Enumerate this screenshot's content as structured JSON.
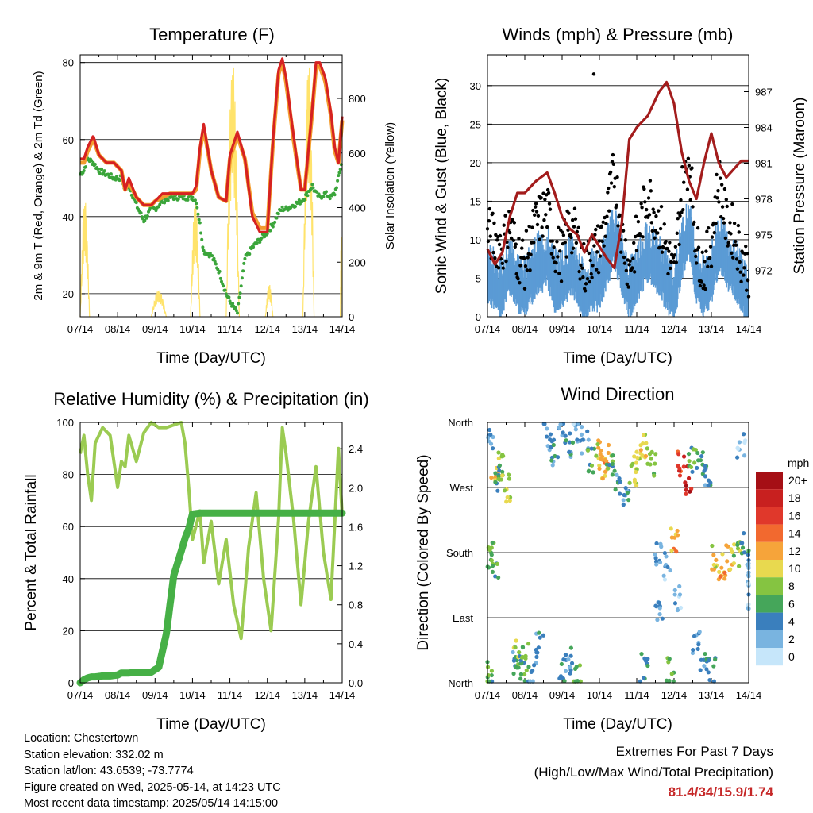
{
  "x_ticks": [
    "07/14",
    "08/14",
    "09/14",
    "10/14",
    "11/14",
    "12/14",
    "13/14",
    "14/14"
  ],
  "colors": {
    "temp2m": "#d62222",
    "temp9m": "#f39c2e",
    "td": "#3aa53a",
    "solar": "#ffe36b",
    "gust": "#000000",
    "wind": "#5b9bd5",
    "pressure": "#a31c1c",
    "rh": "#9bcb52",
    "precip": "#46b046"
  },
  "legend": {
    "unit": "mph",
    "labels": [
      "20+",
      "18",
      "16",
      "14",
      "12",
      "10",
      "8",
      "6",
      "4",
      "2",
      "0"
    ],
    "colors": [
      "#a50f15",
      "#c8201f",
      "#e0382b",
      "#f2692f",
      "#f6a43a",
      "#e8d94f",
      "#85c441",
      "#45a65a",
      "#3a7fbd",
      "#79b4e0",
      "#c6e6fa"
    ]
  },
  "info": {
    "location": "Location: Chestertown",
    "elevation": "Station elevation: 332.02 m",
    "latlon": "Station lat/lon: 43.6539; -73.7774",
    "created": "Figure created on Wed, 2025-05-14, at 14:23 UTC",
    "recent": "Most recent data timestamp: 2025/05/14 14:15:00"
  },
  "extremes": {
    "line1": "Extremes For Past 7 Days",
    "line2": "(High/Low/Max Wind/Total Precipitation)",
    "values": "81.4/34/15.9/1.74"
  },
  "chart_data": [
    {
      "id": "temperature",
      "type": "line",
      "title": "Temperature (F)",
      "xlabel": "Time (Day/UTC)",
      "ylabel": "2m & 9m T (Red, Orange) & 2m Td (Green)",
      "y2label": "Solar Insolation (Yellow)",
      "ylim": [
        14,
        82
      ],
      "yticks": [
        20,
        40,
        60,
        80
      ],
      "y2lim": [
        0,
        960
      ],
      "y2ticks": [
        0,
        200,
        400,
        600,
        800
      ],
      "x": [
        7.0,
        7.1,
        7.2,
        7.35,
        7.5,
        7.7,
        7.9,
        8.1,
        8.2,
        8.3,
        8.5,
        8.7,
        8.9,
        9.0,
        9.2,
        9.4,
        9.6,
        9.8,
        10.0,
        10.1,
        10.2,
        10.3,
        10.5,
        10.7,
        10.9,
        11.0,
        11.2,
        11.4,
        11.6,
        11.8,
        12.0,
        12.15,
        12.3,
        12.4,
        12.5,
        12.7,
        12.9,
        13.0,
        13.2,
        13.3,
        13.4,
        13.55,
        13.7,
        13.8,
        13.9,
        14.0
      ],
      "series": [
        {
          "name": "2m T",
          "values": [
            55,
            55,
            58,
            61,
            56,
            54,
            54,
            52,
            47,
            50,
            45,
            43,
            43,
            44,
            46,
            46,
            46,
            46,
            46,
            48,
            58,
            64,
            52,
            45,
            44,
            56,
            62,
            55,
            40,
            36,
            36,
            60,
            78,
            81,
            76,
            61,
            47,
            47,
            68,
            80,
            80,
            76,
            67,
            58,
            54,
            66
          ]
        },
        {
          "name": "9m T",
          "values": [
            54,
            54,
            57,
            60,
            56,
            54,
            54,
            52,
            47,
            49,
            45,
            43,
            43,
            44,
            45,
            46,
            46,
            46,
            46,
            47,
            57,
            63,
            52,
            45,
            44,
            55,
            61,
            55,
            41,
            37,
            37,
            59,
            77,
            80,
            75,
            60,
            47,
            47,
            67,
            79,
            79,
            75,
            66,
            57,
            54,
            65
          ]
        },
        {
          "name": "2m Td",
          "values": [
            51,
            52,
            55,
            54,
            52,
            51,
            50,
            50,
            47,
            48,
            43,
            39,
            42,
            42,
            44,
            45,
            45,
            45,
            45,
            44,
            38,
            31,
            30,
            26,
            20,
            18,
            15,
            29,
            32,
            34,
            36,
            38,
            41,
            42,
            42,
            43,
            44,
            45,
            48,
            46,
            45,
            46,
            45,
            46,
            50,
            55
          ]
        },
        {
          "name": "Solar Insolation",
          "axis": "y2",
          "values": [
            0,
            430,
            0,
            0,
            0,
            0,
            0,
            0,
            0,
            0,
            0,
            0,
            0,
            100,
            0,
            0,
            0,
            0,
            0,
            430,
            0,
            0,
            0,
            0,
            0,
            0,
            0,
            940,
            0,
            0,
            0,
            0,
            0,
            0,
            0,
            0,
            0,
            0,
            0,
            940,
            0,
            0,
            0,
            0,
            0,
            0
          ]
        }
      ]
    },
    {
      "id": "winds",
      "type": "scatter",
      "title": "Winds (mph) & Pressure (mb)",
      "xlabel": "Time (Day/UTC)",
      "ylabel": "Sonic Wind & Gust (Blue, Black)",
      "y2label": "Station Pressure (Maroon)",
      "ylim": [
        0,
        34
      ],
      "yticks": [
        0,
        5,
        10,
        15,
        20,
        25,
        30
      ],
      "y2lim": [
        968.1,
        990.1
      ],
      "y2ticks": [
        972,
        975,
        978,
        981,
        984,
        987
      ],
      "x": [
        7.0,
        7.2,
        7.4,
        7.6,
        7.8,
        8.0,
        8.3,
        8.6,
        8.8,
        9.0,
        9.2,
        9.4,
        9.6,
        9.8,
        10.0,
        10.2,
        10.4,
        10.6,
        10.8,
        11.0,
        11.3,
        11.6,
        11.8,
        12.0,
        12.2,
        12.4,
        12.6,
        12.8,
        13.0,
        13.2,
        13.4,
        13.6,
        13.8,
        14.0
      ],
      "series": [
        {
          "name": "Gust",
          "values": [
            11,
            10,
            9,
            12,
            8,
            7,
            12,
            14,
            9,
            8,
            12,
            10,
            6,
            8,
            9,
            13,
            19,
            11,
            6,
            10,
            16,
            12,
            9,
            5,
            16,
            21,
            9,
            6,
            10,
            18,
            12,
            11,
            8,
            6
          ]
        },
        {
          "name": "Wind",
          "values": [
            6,
            5,
            4,
            7,
            5,
            4,
            7,
            8,
            5,
            5,
            7,
            6,
            3,
            5,
            5,
            8,
            11,
            7,
            4,
            6,
            9,
            7,
            5,
            3,
            9,
            12,
            6,
            4,
            6,
            10,
            8,
            7,
            5,
            3
          ]
        },
        {
          "name": "Pressure",
          "axis": "y2",
          "values": [
            973.8,
            972.5,
            973.5,
            976.5,
            978.5,
            978.5,
            979.5,
            980.2,
            978.5,
            976.5,
            975.5,
            975.0,
            973.5,
            975.0,
            974.0,
            973.0,
            972.2,
            976.0,
            983.0,
            984.0,
            985.0,
            987.0,
            987.8,
            986.0,
            982.0,
            979.5,
            978.0,
            981.0,
            983.5,
            981.0,
            979.8,
            980.5,
            981.2,
            981.2
          ]
        }
      ]
    },
    {
      "id": "humidity",
      "type": "line",
      "title": "Relative Humidity (%) & Precipitation (in)",
      "xlabel": "Time (Day/UTC)",
      "ylabel": "Percent & Total Rainfall",
      "ylim": [
        0,
        100
      ],
      "yticks": [
        0,
        20,
        40,
        60,
        80,
        100
      ],
      "y2lim": [
        0,
        2.67
      ],
      "y2ticks": [
        0.0,
        0.4,
        0.8,
        1.2,
        1.6,
        2.0,
        2.4
      ],
      "x": [
        7.0,
        7.1,
        7.2,
        7.3,
        7.4,
        7.6,
        7.8,
        8.0,
        8.1,
        8.2,
        8.3,
        8.5,
        8.7,
        8.9,
        9.1,
        9.3,
        9.5,
        9.7,
        9.8,
        9.9,
        10.0,
        10.2,
        10.3,
        10.5,
        10.7,
        10.9,
        11.1,
        11.3,
        11.5,
        11.7,
        11.9,
        12.1,
        12.3,
        12.4,
        12.5,
        12.7,
        12.9,
        13.1,
        13.3,
        13.5,
        13.7,
        13.9,
        14.0
      ],
      "series": [
        {
          "name": "RH",
          "values": [
            88,
            95,
            80,
            70,
            92,
            98,
            95,
            75,
            85,
            83,
            95,
            85,
            96,
            100,
            98,
            98,
            99,
            100,
            92,
            75,
            55,
            66,
            46,
            62,
            38,
            55,
            30,
            17,
            52,
            73,
            40,
            20,
            63,
            98,
            88,
            63,
            30,
            62,
            83,
            50,
            32,
            90,
            64
          ]
        },
        {
          "name": "Total Rainfall",
          "axis": "y2",
          "values": [
            0.0,
            0.03,
            0.05,
            0.06,
            0.06,
            0.07,
            0.07,
            0.08,
            0.1,
            0.1,
            0.1,
            0.11,
            0.11,
            0.11,
            0.16,
            0.5,
            1.1,
            1.35,
            1.48,
            1.58,
            1.73,
            1.74,
            1.74,
            1.74,
            1.74,
            1.74,
            1.74,
            1.74,
            1.74,
            1.74,
            1.74,
            1.74,
            1.74,
            1.74,
            1.74,
            1.74,
            1.74,
            1.74,
            1.74,
            1.74,
            1.74,
            1.74,
            1.74
          ]
        }
      ]
    },
    {
      "id": "direction",
      "type": "scatter",
      "title": "Wind Direction",
      "xlabel": "Time (Day/UTC)",
      "ylabel": "Direction (Colored By Speed)",
      "ylim": [
        0,
        360
      ],
      "yticks": [
        0,
        90,
        180,
        270,
        360
      ],
      "ytick_labels": [
        "North",
        "East",
        "South",
        "West",
        "North"
      ],
      "points": [
        [
          7.1,
          330,
          3
        ],
        [
          7.2,
          295,
          10
        ],
        [
          7.3,
          280,
          5
        ],
        [
          7.4,
          300,
          7
        ],
        [
          7.5,
          270,
          9
        ],
        [
          7.1,
          175,
          7
        ],
        [
          7.2,
          160,
          6
        ],
        [
          7.05,
          10,
          6
        ],
        [
          7.7,
          30,
          4
        ],
        [
          7.8,
          40,
          8
        ],
        [
          7.9,
          20,
          6
        ],
        [
          8.0,
          35,
          7
        ],
        [
          8.2,
          15,
          3
        ],
        [
          8.4,
          50,
          4
        ],
        [
          8.6,
          340,
          3
        ],
        [
          8.8,
          320,
          4
        ],
        [
          9.0,
          345,
          3
        ],
        [
          9.2,
          330,
          4
        ],
        [
          9.4,
          350,
          2
        ],
        [
          9.6,
          335,
          3
        ],
        [
          9.8,
          310,
          6
        ],
        [
          9.0,
          20,
          5
        ],
        [
          9.2,
          30,
          4
        ],
        [
          9.4,
          10,
          6
        ],
        [
          10.0,
          320,
          10
        ],
        [
          10.1,
          300,
          12
        ],
        [
          10.2,
          310,
          13
        ],
        [
          10.3,
          300,
          6
        ],
        [
          10.5,
          280,
          4
        ],
        [
          10.7,
          260,
          4
        ],
        [
          10.9,
          290,
          8
        ],
        [
          11.0,
          310,
          9
        ],
        [
          11.2,
          330,
          10
        ],
        [
          11.4,
          300,
          8
        ],
        [
          11.6,
          180,
          3
        ],
        [
          11.8,
          160,
          2
        ],
        [
          12.0,
          200,
          12
        ],
        [
          12.2,
          300,
          16
        ],
        [
          12.4,
          280,
          18
        ],
        [
          12.5,
          310,
          6
        ],
        [
          12.7,
          300,
          5
        ],
        [
          12.9,
          290,
          4
        ],
        [
          12.6,
          60,
          3
        ],
        [
          12.8,
          30,
          4
        ],
        [
          13.0,
          20,
          5
        ],
        [
          13.1,
          170,
          10
        ],
        [
          13.3,
          160,
          12
        ],
        [
          13.5,
          175,
          11
        ],
        [
          13.7,
          180,
          8
        ],
        [
          13.9,
          190,
          5
        ],
        [
          14.0,
          150,
          3
        ],
        [
          14.0,
          120,
          2
        ],
        [
          11.9,
          15,
          6
        ],
        [
          11.2,
          20,
          5
        ],
        [
          11.6,
          100,
          3
        ],
        [
          12.1,
          120,
          2
        ],
        [
          13.8,
          330,
          2
        ]
      ]
    }
  ]
}
